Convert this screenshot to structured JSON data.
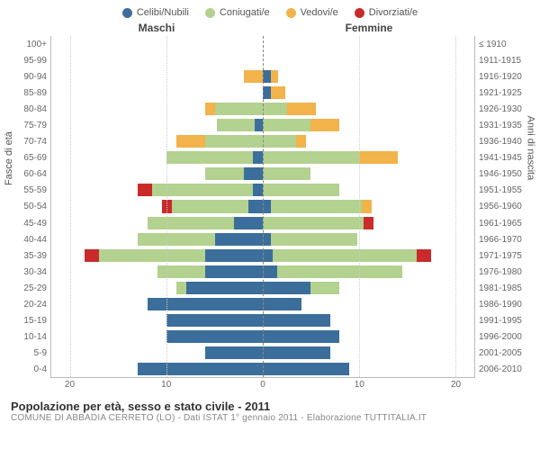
{
  "legend": {
    "items": [
      {
        "label": "Celibi/Nubili",
        "color": "#3b6e9b"
      },
      {
        "label": "Coniugati/e",
        "color": "#b3d18f"
      },
      {
        "label": "Vedovi/e",
        "color": "#f1b34a"
      },
      {
        "label": "Divorziati/e",
        "color": "#c92a2a"
      }
    ]
  },
  "headers": {
    "male": "Maschi",
    "female": "Femmine"
  },
  "axis_titles": {
    "left": "Fasce di età",
    "right": "Anni di nascita"
  },
  "x_axis": {
    "max": 22,
    "ticks": [
      20,
      10,
      0,
      10,
      20
    ]
  },
  "age_labels": [
    "100+",
    "95-99",
    "90-94",
    "85-89",
    "80-84",
    "75-79",
    "70-74",
    "65-69",
    "60-64",
    "55-59",
    "50-54",
    "45-49",
    "40-44",
    "35-39",
    "30-34",
    "25-29",
    "20-24",
    "15-19",
    "10-14",
    "5-9",
    "0-4"
  ],
  "birth_labels": [
    "≤ 1910",
    "1911-1915",
    "1916-1920",
    "1921-1925",
    "1926-1930",
    "1931-1935",
    "1936-1940",
    "1941-1945",
    "1946-1950",
    "1951-1955",
    "1956-1960",
    "1961-1965",
    "1966-1970",
    "1971-1975",
    "1976-1980",
    "1981-1985",
    "1986-1990",
    "1991-1995",
    "1996-2000",
    "2001-2005",
    "2006-2010"
  ],
  "colors": {
    "celibi": "#3b6e9b",
    "coniugati": "#b3d18f",
    "vedovi": "#f1b34a",
    "divorziati": "#c92a2a"
  },
  "rows": [
    {
      "male": {
        "c": 0,
        "m": 0,
        "w": 0,
        "d": 0
      },
      "female": {
        "c": 0,
        "m": 0,
        "w": 0,
        "d": 0
      }
    },
    {
      "male": {
        "c": 0,
        "m": 0,
        "w": 0,
        "d": 0
      },
      "female": {
        "c": 0,
        "m": 0,
        "w": 0,
        "d": 0
      }
    },
    {
      "male": {
        "c": 0,
        "m": 0,
        "w": 2,
        "d": 0
      },
      "female": {
        "c": 0.8,
        "m": 0,
        "w": 0.8,
        "d": 0
      }
    },
    {
      "male": {
        "c": 0,
        "m": 0,
        "w": 0,
        "d": 0
      },
      "female": {
        "c": 0.8,
        "m": 0,
        "w": 1.5,
        "d": 0
      }
    },
    {
      "male": {
        "c": 0,
        "m": 5,
        "w": 1,
        "d": 0
      },
      "female": {
        "c": 0,
        "m": 2.5,
        "w": 3,
        "d": 0
      }
    },
    {
      "male": {
        "c": 0.8,
        "m": 4,
        "w": 0,
        "d": 0
      },
      "female": {
        "c": 0,
        "m": 5,
        "w": 3,
        "d": 0
      }
    },
    {
      "male": {
        "c": 0,
        "m": 6,
        "w": 3,
        "d": 0
      },
      "female": {
        "c": 0,
        "m": 3.5,
        "w": 1,
        "d": 0
      }
    },
    {
      "male": {
        "c": 1,
        "m": 9,
        "w": 0,
        "d": 0
      },
      "female": {
        "c": 0,
        "m": 10,
        "w": 4,
        "d": 0
      }
    },
    {
      "male": {
        "c": 2,
        "m": 4,
        "w": 0,
        "d": 0
      },
      "female": {
        "c": 0,
        "m": 5,
        "w": 0,
        "d": 0
      }
    },
    {
      "male": {
        "c": 1,
        "m": 10.5,
        "w": 0,
        "d": 1.5
      },
      "female": {
        "c": 0,
        "m": 8,
        "w": 0,
        "d": 0
      }
    },
    {
      "male": {
        "c": 1.5,
        "m": 8,
        "w": 0,
        "d": 1
      },
      "female": {
        "c": 0.8,
        "m": 9.5,
        "w": 1,
        "d": 0
      }
    },
    {
      "male": {
        "c": 3,
        "m": 9,
        "w": 0,
        "d": 0
      },
      "female": {
        "c": 0,
        "m": 10.5,
        "w": 0,
        "d": 1
      }
    },
    {
      "male": {
        "c": 5,
        "m": 8,
        "w": 0,
        "d": 0
      },
      "female": {
        "c": 0.8,
        "m": 9,
        "w": 0,
        "d": 0
      }
    },
    {
      "male": {
        "c": 6,
        "m": 11,
        "w": 0,
        "d": 1.5
      },
      "female": {
        "c": 1,
        "m": 15,
        "w": 0,
        "d": 1.5
      }
    },
    {
      "male": {
        "c": 6,
        "m": 5,
        "w": 0,
        "d": 0
      },
      "female": {
        "c": 1.5,
        "m": 13,
        "w": 0,
        "d": 0
      }
    },
    {
      "male": {
        "c": 8,
        "m": 1,
        "w": 0,
        "d": 0
      },
      "female": {
        "c": 5,
        "m": 3,
        "w": 0,
        "d": 0
      }
    },
    {
      "male": {
        "c": 12,
        "m": 0,
        "w": 0,
        "d": 0
      },
      "female": {
        "c": 4,
        "m": 0,
        "w": 0,
        "d": 0
      }
    },
    {
      "male": {
        "c": 10,
        "m": 0,
        "w": 0,
        "d": 0
      },
      "female": {
        "c": 7,
        "m": 0,
        "w": 0,
        "d": 0
      }
    },
    {
      "male": {
        "c": 10,
        "m": 0,
        "w": 0,
        "d": 0
      },
      "female": {
        "c": 8,
        "m": 0,
        "w": 0,
        "d": 0
      }
    },
    {
      "male": {
        "c": 6,
        "m": 0,
        "w": 0,
        "d": 0
      },
      "female": {
        "c": 7,
        "m": 0,
        "w": 0,
        "d": 0
      }
    },
    {
      "male": {
        "c": 13,
        "m": 0,
        "w": 0,
        "d": 0
      },
      "female": {
        "c": 9,
        "m": 0,
        "w": 0,
        "d": 0
      }
    }
  ],
  "footer": {
    "title": "Popolazione per età, sesso e stato civile - 2011",
    "subtitle": "COMUNE DI ABBADIA CERRETO (LO) - Dati ISTAT 1° gennaio 2011 - Elaborazione TUTTITALIA.IT"
  },
  "style": {
    "background": "#ffffff",
    "grid_color": "#cccccc",
    "center_line": "#888888",
    "label_color": "#666666",
    "label_fontsize": 10,
    "legend_fontsize": 11
  }
}
